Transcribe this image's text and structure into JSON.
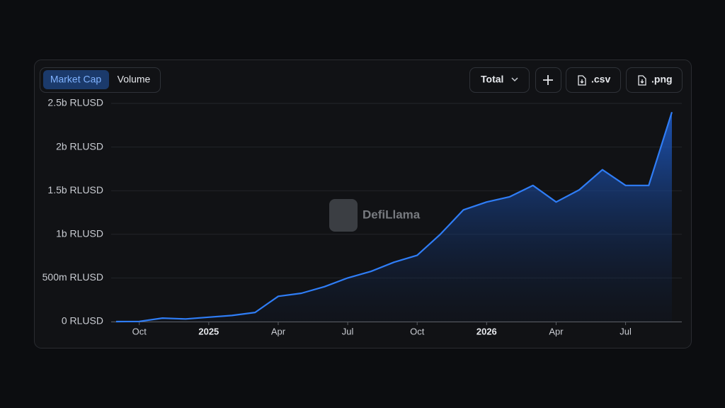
{
  "ui": {
    "tabs": [
      "Market Cap",
      "Volume"
    ],
    "active_tab": 0,
    "dropdown": "Total",
    "buttons": [
      ".csv",
      ".png"
    ],
    "watermark": "DefiLlama"
  },
  "chart_data": {
    "type": "area",
    "x": [
      "2024-09",
      "2024-10",
      "2024-11",
      "2024-12",
      "2025-01",
      "2025-02",
      "2025-03",
      "2025-04",
      "2025-05",
      "2025-06",
      "2025-07",
      "2025-08",
      "2025-09",
      "2025-10",
      "2025-11",
      "2025-12",
      "2026-01",
      "2026-02",
      "2026-03",
      "2026-04",
      "2026-05",
      "2026-06",
      "2026-07",
      "2026-08",
      "2026-09"
    ],
    "series": [
      {
        "name": "Market Cap",
        "color": "#2f7df6",
        "values": [
          0,
          2000000,
          40000000,
          30000000,
          50000000,
          70000000,
          105000000,
          290000000,
          325000000,
          400000000,
          500000000,
          575000000,
          680000000,
          760000000,
          1000000000,
          1280000000,
          1370000000,
          1430000000,
          1560000000,
          1370000000,
          1510000000,
          1740000000,
          1560000000,
          1560000000,
          2400000000
        ]
      }
    ],
    "xlim": [
      "2024-09",
      "2026-09"
    ],
    "xticks": [
      {
        "value": "2024-10",
        "label": "Oct"
      },
      {
        "value": "2025-01",
        "label": "2025"
      },
      {
        "value": "2025-04",
        "label": "Apr"
      },
      {
        "value": "2025-07",
        "label": "Jul"
      },
      {
        "value": "2025-10",
        "label": "Oct"
      },
      {
        "value": "2026-01",
        "label": "2026"
      },
      {
        "value": "2026-04",
        "label": "Apr"
      },
      {
        "value": "2026-07",
        "label": "Jul"
      }
    ],
    "ylim": [
      0,
      2500000000
    ],
    "yticks": [
      {
        "value": 0,
        "label": "0 RLUSD"
      },
      {
        "value": 500000000,
        "label": "500m RLUSD"
      },
      {
        "value": 1000000000,
        "label": "1b RLUSD"
      },
      {
        "value": 1500000000,
        "label": "1.5b RLUSD"
      },
      {
        "value": 2000000000,
        "label": "2b RLUSD"
      },
      {
        "value": 2500000000,
        "label": "2.5b RLUSD"
      }
    ],
    "grid": true
  }
}
